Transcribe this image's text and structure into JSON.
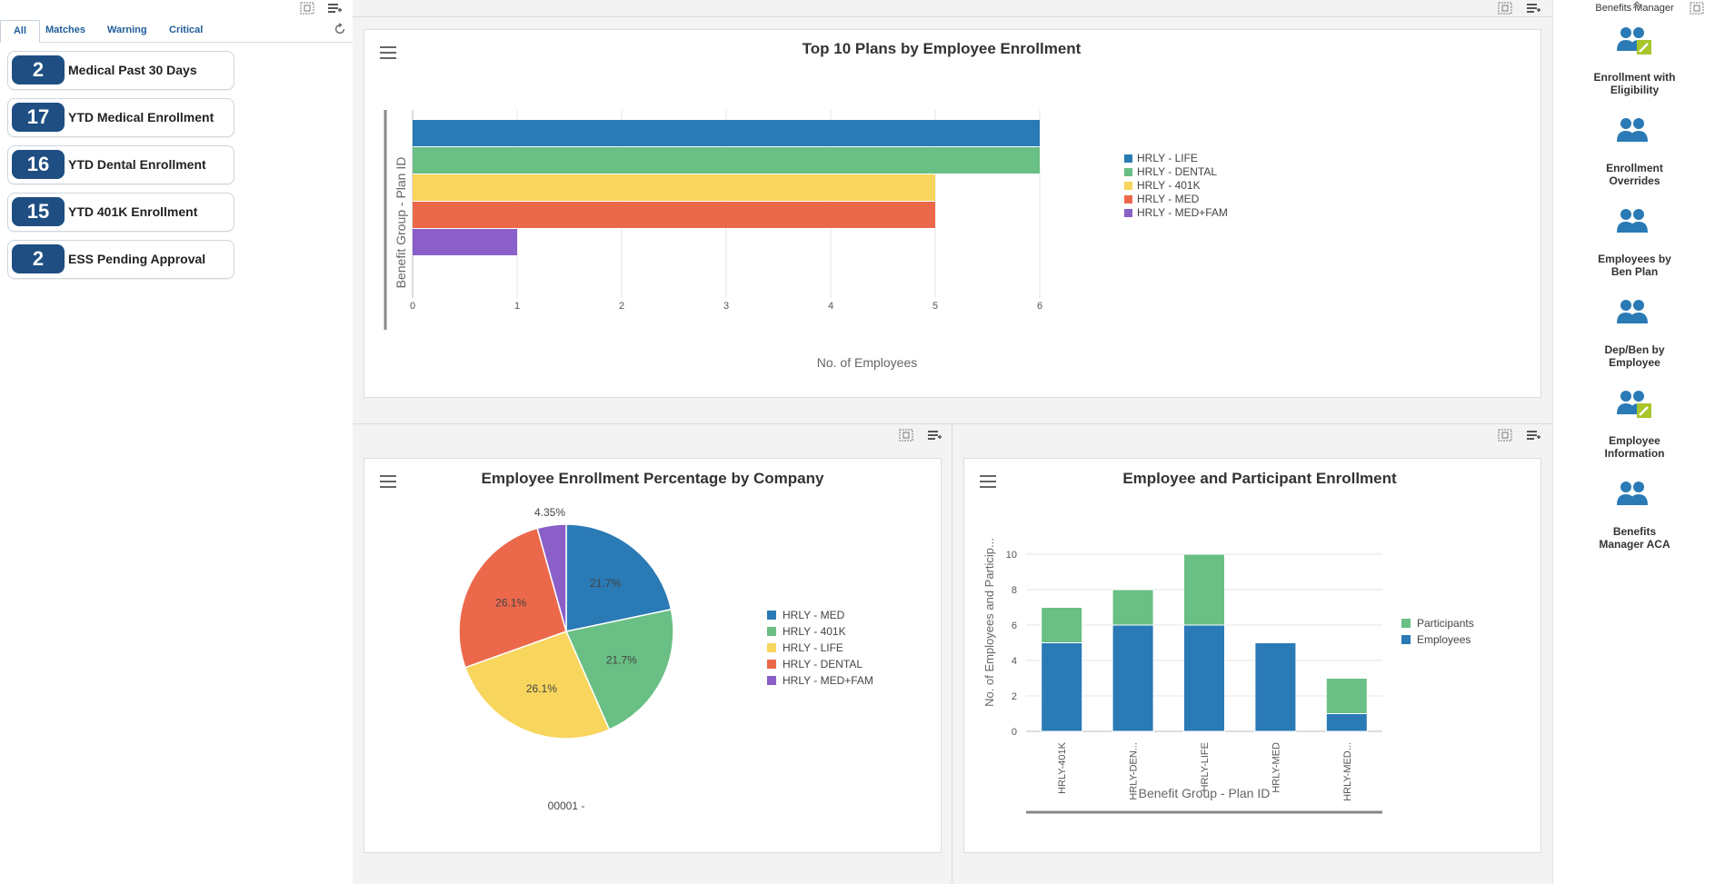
{
  "watchlist": {
    "tabs": [
      {
        "label": "All"
      },
      {
        "label": "Matches"
      },
      {
        "label": "Warning"
      },
      {
        "label": "Critical"
      }
    ],
    "items": [
      {
        "count": "2",
        "label": "Medical Past 30 Days"
      },
      {
        "count": "17",
        "label": "YTD Medical Enrollment"
      },
      {
        "count": "16",
        "label": "YTD Dental Enrollment"
      },
      {
        "count": "15",
        "label": "YTD 401K Enrollment"
      },
      {
        "count": "2",
        "label": "ESS Pending Approval"
      }
    ]
  },
  "springboard": {
    "title": "Benefits Manager",
    "items": [
      {
        "label_line1": "Enrollment with",
        "label_line2": "Eligibility",
        "icon": "users-edit-icon"
      },
      {
        "label_line1": "Enrollment",
        "label_line2": "Overrides",
        "icon": "users-icon"
      },
      {
        "label_line1": "Employees by",
        "label_line2": "Ben Plan",
        "icon": "users-icon"
      },
      {
        "label_line1": "Dep/Ben by",
        "label_line2": "Employee",
        "icon": "users-icon"
      },
      {
        "label_line1": "Employee",
        "label_line2": "Information",
        "icon": "users-edit-icon"
      },
      {
        "label_line1": "Benefits",
        "label_line2": "Manager ACA",
        "icon": "users-icon"
      }
    ]
  },
  "colors": {
    "blue": "#2a7ab5",
    "green": "#6abf84",
    "yellow": "#f8d55c",
    "red": "#ec684b",
    "purple": "#8a5fc8",
    "badge": "#1e4e82"
  },
  "chart_data": [
    {
      "type": "bar",
      "orientation": "horizontal",
      "title": "Top 10 Plans by Employee Enrollment",
      "xlabel": "No. of Employees",
      "ylabel": "Benefit Group - Plan ID",
      "xlim": [
        0,
        6
      ],
      "xticks": [
        "0",
        "1",
        "2",
        "3",
        "4",
        "5",
        "6"
      ],
      "categories": [
        "HRLY - LIFE",
        "HRLY - DENTAL",
        "HRLY - 401K",
        "HRLY - MED",
        "HRLY - MED+FAM"
      ],
      "values": [
        6,
        6,
        5,
        5,
        1
      ],
      "legend": [
        "HRLY - LIFE",
        "HRLY - DENTAL",
        "HRLY - 401K",
        "HRLY - MED",
        "HRLY - MED+FAM"
      ]
    },
    {
      "type": "pie",
      "title": "Employee Enrollment Percentage by Company",
      "labels": [
        "HRLY - MED",
        "HRLY - 401K",
        "HRLY - LIFE",
        "HRLY - DENTAL",
        "HRLY - MED+FAM"
      ],
      "values": [
        21.7,
        21.7,
        26.1,
        26.1,
        4.35
      ],
      "value_labels": [
        "21.7%",
        "21.7%",
        "26.1%",
        "26.1%",
        "4.35%"
      ],
      "caption": "00001 -"
    },
    {
      "type": "bar",
      "stacked": true,
      "title": "Employee and Participant Enrollment",
      "xlabel": "Benefit Group - Plan ID",
      "ylabel": "No. of Employees and Particip...",
      "ylim": [
        0,
        10
      ],
      "yticks": [
        "0",
        "2",
        "4",
        "6",
        "8",
        "10"
      ],
      "categories": [
        "HRLY-401K",
        "HRLY-DEN...",
        "HRLY-LIFE",
        "HRLY-MED",
        "HRLY-MED..."
      ],
      "series": [
        {
          "name": "Employees",
          "values": [
            5,
            6,
            6,
            5,
            1
          ]
        },
        {
          "name": "Participants",
          "values": [
            2,
            2,
            4,
            0,
            2
          ]
        }
      ],
      "legend": [
        "Participants",
        "Employees"
      ]
    }
  ]
}
